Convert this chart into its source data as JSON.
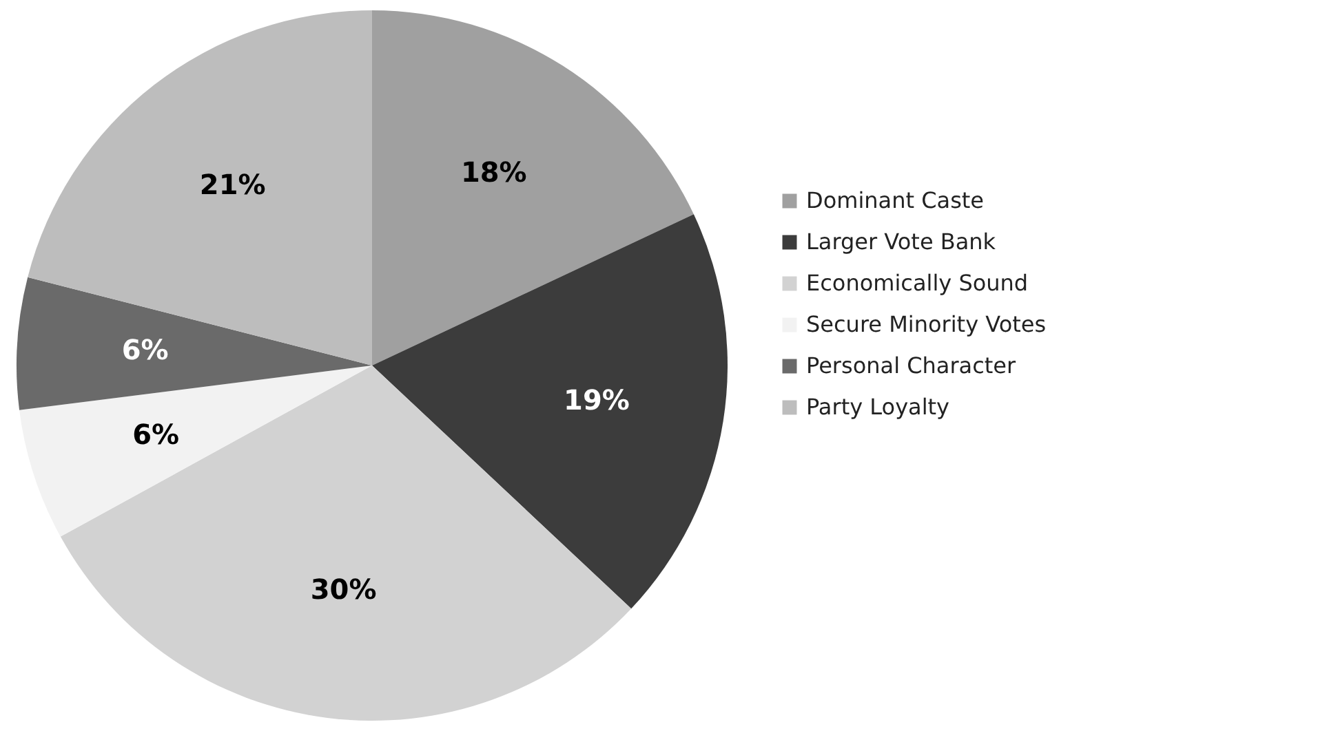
{
  "chart_data": {
    "type": "pie",
    "categories": [
      "Dominant Caste",
      "Larger Vote Bank",
      "Economically Sound",
      "Secure Minority Votes",
      "Personal Character",
      "Party Loyalty"
    ],
    "values": [
      18,
      19,
      30,
      6,
      6,
      21
    ],
    "value_labels": [
      "18%",
      "19%",
      "30%",
      "6%",
      "6%",
      "21%"
    ],
    "colors": [
      "#a0a0a0",
      "#3c3c3c",
      "#d2d2d2",
      "#f2f2f2",
      "#6a6a6a",
      "#bdbdbd"
    ],
    "legend": "right"
  }
}
